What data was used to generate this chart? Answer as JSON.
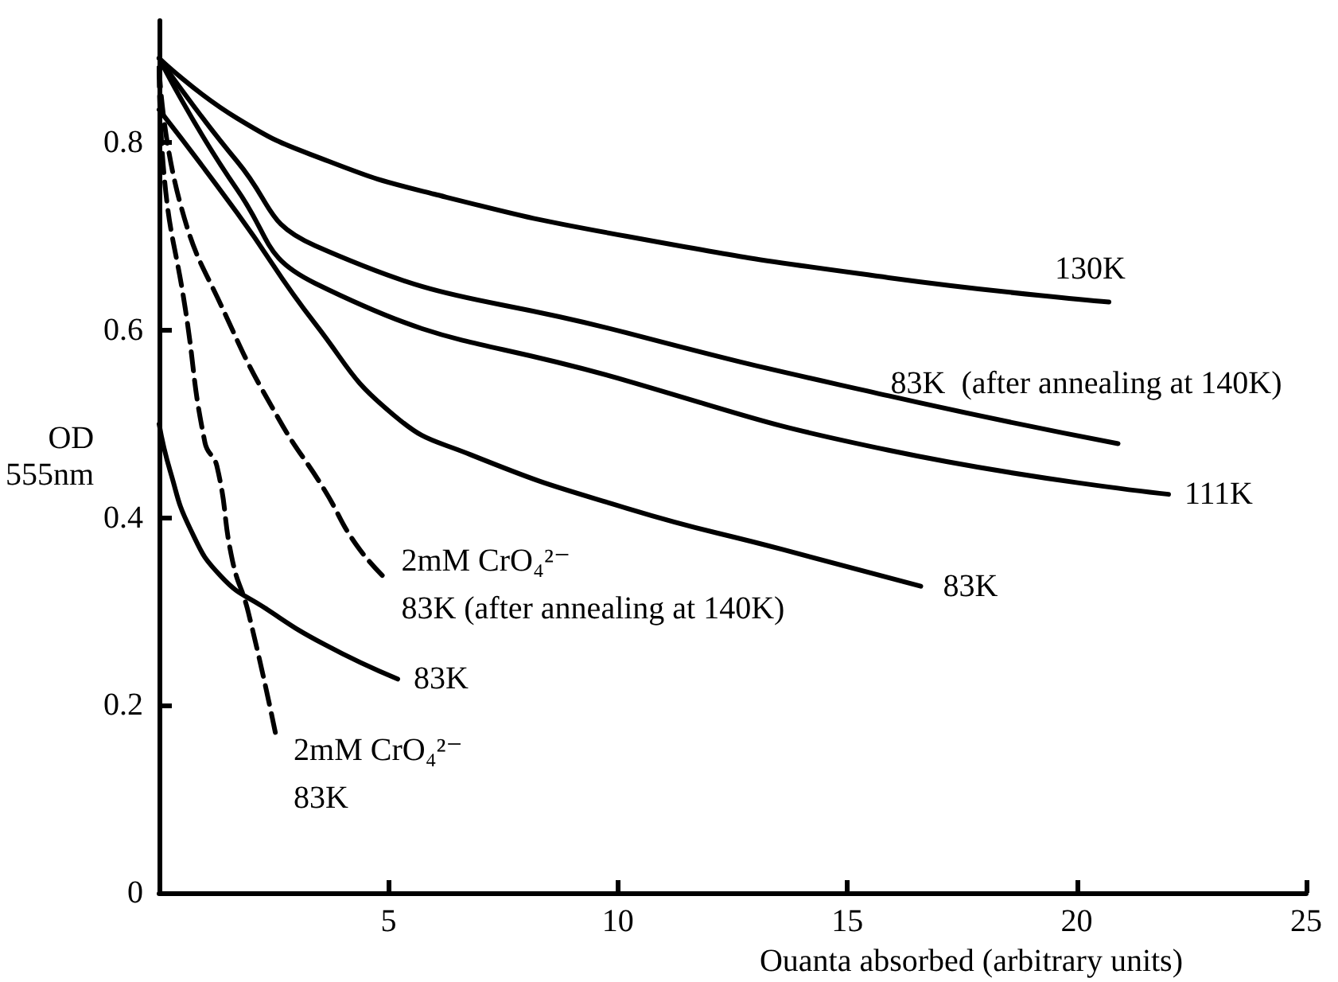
{
  "chart_data": {
    "type": "line",
    "xlabel": "Ouanta absorbed (arbitrary units)",
    "ylabel": "OD\n555nm",
    "xlim": [
      0,
      25
    ],
    "xticks": [
      {
        "value": 0,
        "label": null
      },
      5,
      10,
      15,
      20,
      25
    ],
    "ylim": [
      0,
      0.93
    ],
    "yticks": [
      0,
      0.2,
      0.4,
      0.6,
      0.8
    ],
    "grid": false,
    "legend": false,
    "marker": "none",
    "series": [
      {
        "name": "130K",
        "color": "#000000",
        "line_style": "solid",
        "x": [
          0,
          1.7,
          3.7,
          6.0,
          10.2,
          15.9,
          20.7
        ],
        "values": [
          0.89,
          0.826,
          0.78,
          0.745,
          0.7,
          0.656,
          0.63
        ]
      },
      {
        "name": "83K  (after annealing at 140K)",
        "color": "#000000",
        "line_style": "solid",
        "x": [
          0,
          1.7,
          3.4,
          10.2,
          15.9,
          20.9
        ],
        "values": [
          0.89,
          0.78,
          0.69,
          0.597,
          0.53,
          0.479
        ]
      },
      {
        "name": "111K",
        "color": "#000000",
        "line_style": "solid",
        "x": [
          0,
          1.7,
          3.4,
          10.2,
          15.9,
          22.0
        ],
        "values": [
          0.89,
          0.75,
          0.65,
          0.546,
          0.472,
          0.425
        ]
      },
      {
        "name": "83K",
        "color": "#000000",
        "line_style": "solid",
        "x": [
          0,
          1.7,
          3.4,
          5.1,
          6.8,
          10.2,
          13.6,
          16.6
        ],
        "values": [
          0.835,
          0.725,
          0.607,
          0.51,
          0.467,
          0.41,
          0.366,
          0.327
        ]
      },
      {
        "name": "2mM CrO₄²⁻\n83K (after annealing at 140K)",
        "color": "#000000",
        "line_style": "dashed",
        "x": [
          0,
          0.45,
          1.47,
          2.6,
          3.6,
          4.3,
          5.0
        ],
        "values": [
          0.88,
          0.737,
          0.614,
          0.506,
          0.43,
          0.371,
          0.332
        ]
      },
      {
        "name": "2mM CrO₄²⁻\n83K",
        "color": "#000000",
        "line_style": "dashed",
        "x": [
          0,
          0.1,
          0.58,
          1.0,
          1.26,
          1.6,
          1.94,
          2.55
        ],
        "values": [
          0.88,
          0.77,
          0.62,
          0.48,
          0.455,
          0.354,
          0.3,
          0.167
        ]
      },
      {
        "name": "83K",
        "color": "#000000",
        "line_style": "solid",
        "x": [
          0,
          0.24,
          0.68,
          1.36,
          2.3,
          3.6,
          5.2
        ],
        "values": [
          0.5,
          0.45,
          0.388,
          0.337,
          0.304,
          0.265,
          0.228
        ]
      }
    ]
  }
}
